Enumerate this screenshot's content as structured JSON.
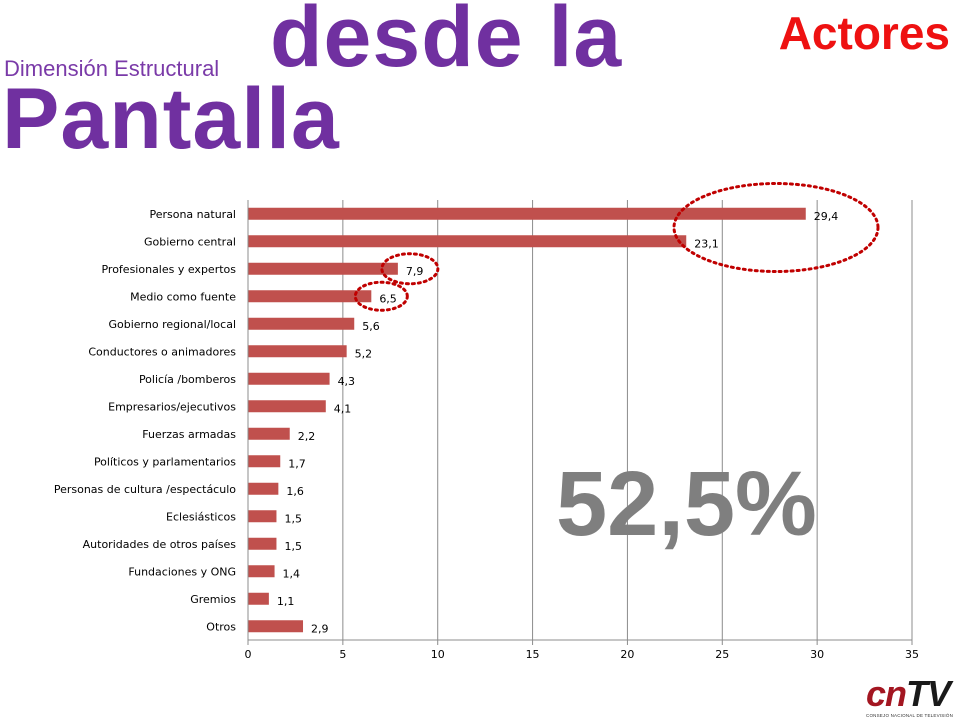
{
  "header": {
    "subtitle": "Dimensión Estructural",
    "title_line1": "desde la",
    "title_line2": "Pantalla",
    "corner_title": "Actores"
  },
  "highlight": {
    "text": "52,5%"
  },
  "logo": {
    "main_part1": "cn",
    "main_part2": "TV",
    "sub": "CONSEJO NACIONAL DE TELEVISIÓN"
  },
  "colors": {
    "title": "#7030a0",
    "accent": "#ee1111",
    "bar": "#c0504d",
    "circle": "#c00000",
    "highlight": "#7f7f7f"
  },
  "chart_data": {
    "type": "bar",
    "orientation": "horizontal",
    "categories": [
      "Persona natural",
      "Gobierno central",
      "Profesionales y expertos",
      "Medio como fuente",
      "Gobierno regional/local",
      "Conductores o animadores",
      "Policía /bomberos",
      "Empresarios/ejecutivos",
      "Fuerzas armadas",
      "Políticos y parlamentarios",
      "Personas de cultura /espectáculo",
      "Eclesiásticos",
      "Autoridades de otros países",
      "Fundaciones y ONG",
      "Gremios",
      "Otros"
    ],
    "values": [
      29.4,
      23.1,
      7.9,
      6.5,
      5.6,
      5.2,
      4.3,
      4.1,
      2.2,
      1.7,
      1.6,
      1.5,
      1.5,
      1.4,
      1.1,
      2.9
    ],
    "value_labels": [
      "29,4",
      "23,1",
      "7,9",
      "6,5",
      "5,6",
      "5,2",
      "4,3",
      "4,1",
      "2,2",
      "1,7",
      "1,6",
      "1,5",
      "1,5",
      "1,4",
      "1,1",
      "2,9"
    ],
    "xlim": [
      0,
      35
    ],
    "xticks": [
      0,
      5,
      10,
      15,
      20,
      25,
      30,
      35
    ],
    "grid": "vertical",
    "highlighted_categories": [
      "Persona natural",
      "Gobierno central",
      "Profesionales y expertos",
      "Medio como fuente"
    ]
  }
}
